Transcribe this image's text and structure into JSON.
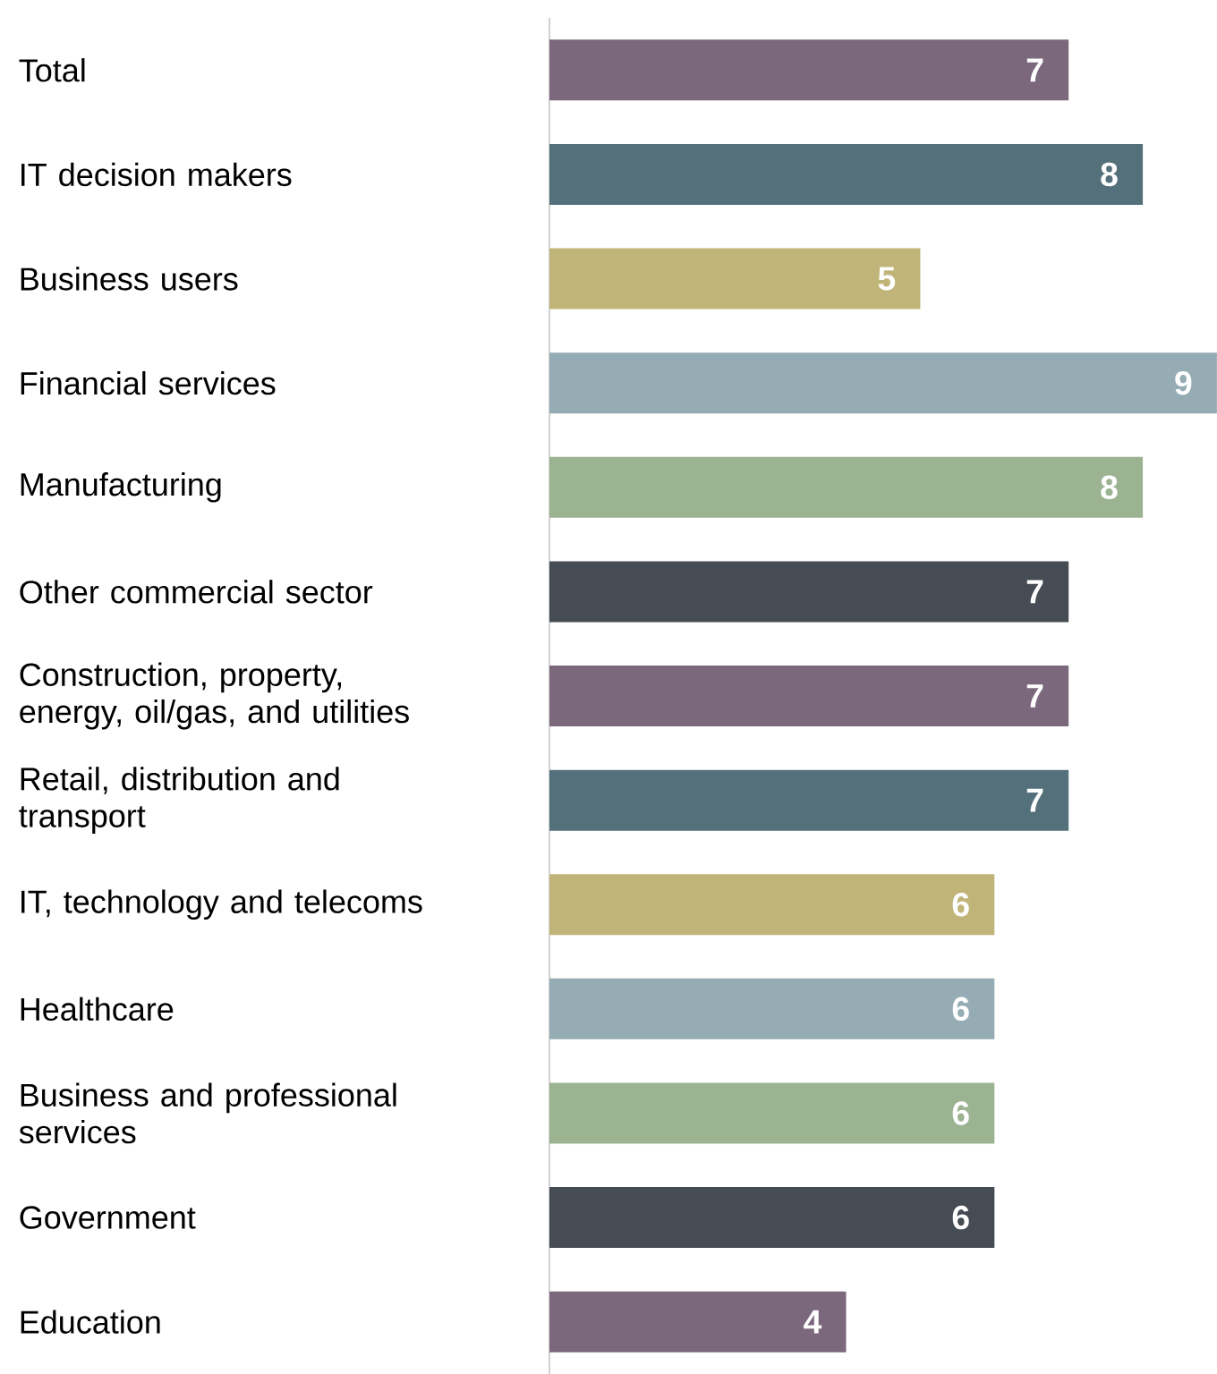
{
  "chart_data": {
    "type": "bar",
    "orientation": "horizontal",
    "data_labels": true,
    "categories": [
      "Total",
      "IT decision makers",
      "Business users",
      "Financial services",
      "Manufacturing",
      "Other commercial sector",
      "Construction, property, energy, oil/gas, and utilities",
      "Retail, distribution and transport",
      "IT, technology and telecoms",
      "Healthcare",
      "Business and professional services",
      "Government",
      "Education"
    ],
    "values": [
      7,
      8,
      5,
      9,
      8,
      7,
      7,
      7,
      6,
      6,
      6,
      6,
      4
    ],
    "colors": [
      "#7b687d",
      "#53707b",
      "#c0b478",
      "#95acb4",
      "#9bb391",
      "#454c53",
      "#7b687d",
      "#53707b",
      "#c0b478",
      "#95acb4",
      "#9bb391",
      "#454c53",
      "#7b687d"
    ],
    "grid": false
  }
}
